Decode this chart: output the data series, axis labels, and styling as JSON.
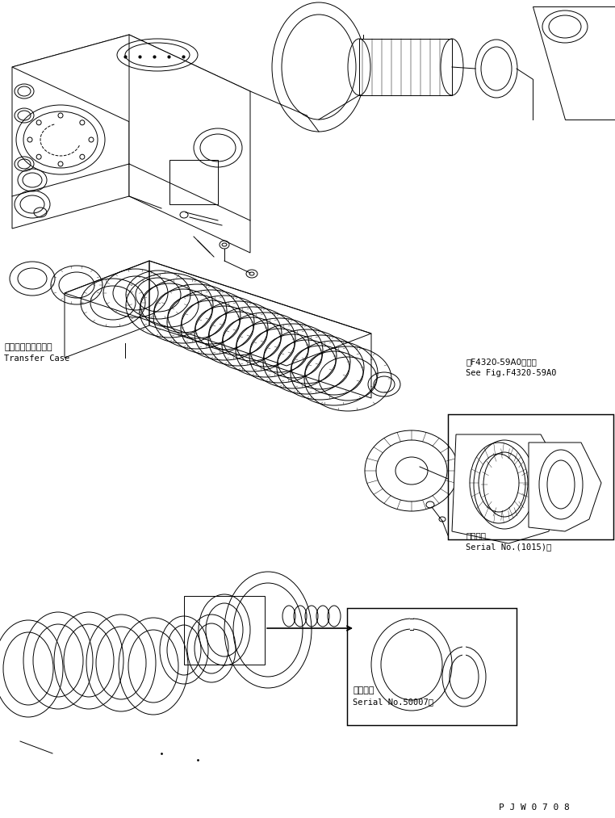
{
  "bg_color": "#ffffff",
  "line_color": "#000000",
  "fig_width": 7.62,
  "fig_height": 10.13,
  "dpi": 100,
  "watermark": "P J W 0 7 0 8",
  "label_transfer_case_jp": "トランスファケース",
  "label_transfer_case_en": "Transfer Case",
  "label_fig_ref_jp": "第F4320-59A0図参照",
  "label_fig_ref_en": "See Fig.F4320-59A0",
  "label_serial1_jp": "適用号機",
  "label_serial1_en": "Serial No.(1015)～",
  "label_serial2_jp": "適用号機",
  "label_serial2_en": "Serial No.50007～"
}
